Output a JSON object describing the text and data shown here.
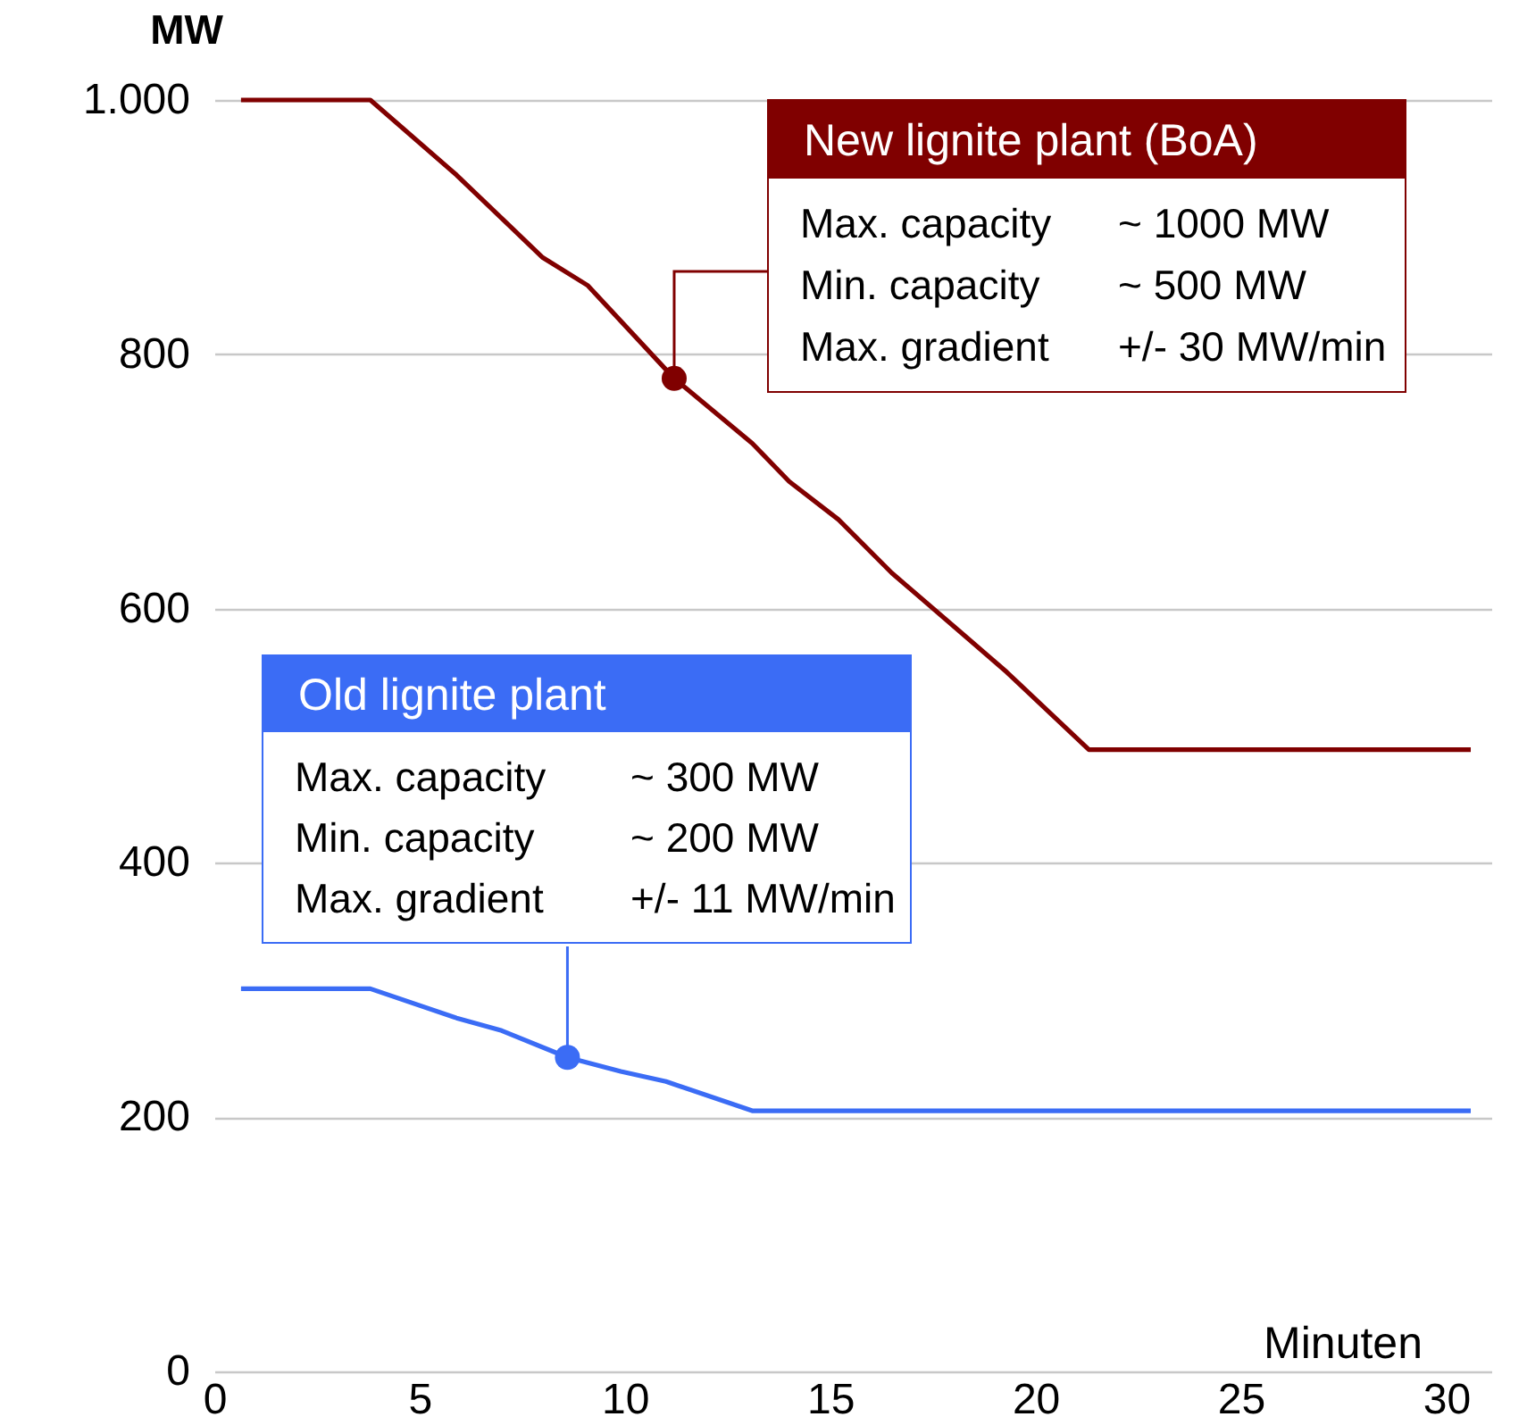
{
  "chart_data": {
    "type": "line",
    "xlabel": "Minuten",
    "ylabel": "MW",
    "xlim": [
      0,
      31.1
    ],
    "ylim": [
      0,
      1000
    ],
    "xticks": [
      0,
      5,
      10,
      15,
      20,
      25,
      30
    ],
    "yticks": [
      0,
      200,
      400,
      600,
      800,
      {
        "value": 1000,
        "label": "1.000"
      }
    ],
    "grid": "y",
    "marker": "none",
    "line_style": "solid",
    "series": [
      {
        "color": "#800000",
        "x": [
          0.65,
          3.8,
          5.9,
          8.0,
          9.1,
          11.2,
          13.1,
          14.0,
          15.2,
          16.5,
          18.3,
          19.3,
          21.3,
          30.6
        ],
        "values": [
          1000,
          1000,
          941,
          876,
          854,
          781,
          730,
          700,
          670,
          628,
          578,
          550,
          489,
          489
        ]
      },
      {
        "color": "#3b6cf5",
        "x": [
          0.65,
          3.8,
          5.9,
          7.0,
          8.6,
          9.9,
          11.0,
          13.1,
          30.6
        ],
        "values": [
          301,
          301,
          278,
          268,
          247,
          236,
          228,
          205,
          205
        ]
      }
    ],
    "annotations": [
      "New lignite plant (BoA)",
      {
        "text": "Max. capacity",
        "x": 11.2,
        "y": 781
      },
      "~ 1000 MW",
      "Min. capacity",
      "~ 500 MW",
      "Max. gradient",
      "+/- 30 MW/min",
      "Old lignite plant",
      "Max. capacity",
      "~ 300 MW",
      "Min. capacity",
      "~ 200 MW",
      {
        "text": "Max. gradient",
        "x": 8.6,
        "y": 247
      },
      "+/- 11 MW/min"
    ]
  }
}
